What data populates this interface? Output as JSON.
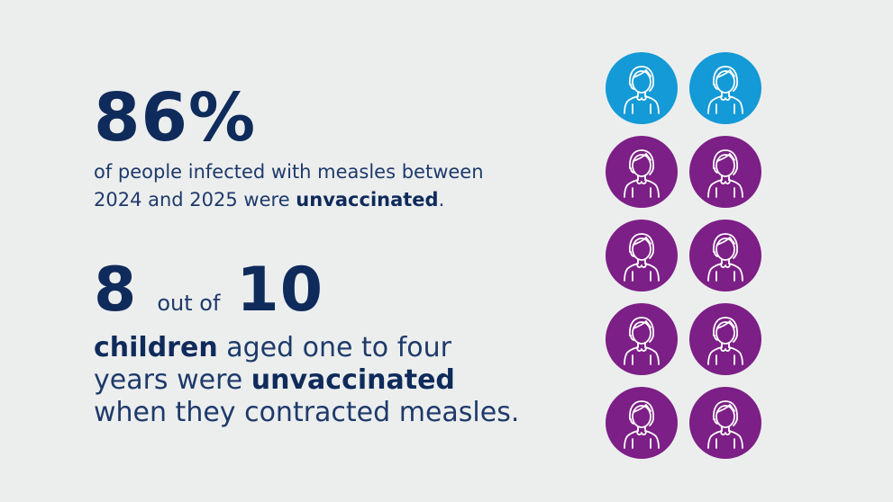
{
  "stat1": {
    "value": "86%",
    "line1": "of people infected with measles between",
    "line2_pre": "2024 and 2025 were ",
    "line2_bold": "unvaccinated",
    "line2_post": "."
  },
  "stat2": {
    "numerator": "8",
    "connector": "out of",
    "denominator": "10",
    "line1_bold": "children",
    "line1_post": " aged one to four",
    "line2_pre": "years were ",
    "line2_bold": "unvaccinated",
    "line3": "when they contracted measles."
  },
  "pictogram": {
    "icon": "person-icon",
    "total": 10,
    "highlighted": 2,
    "colors": {
      "highlighted": "#149ad6",
      "default": "#7c1f86",
      "outline": "#ffffff"
    }
  }
}
